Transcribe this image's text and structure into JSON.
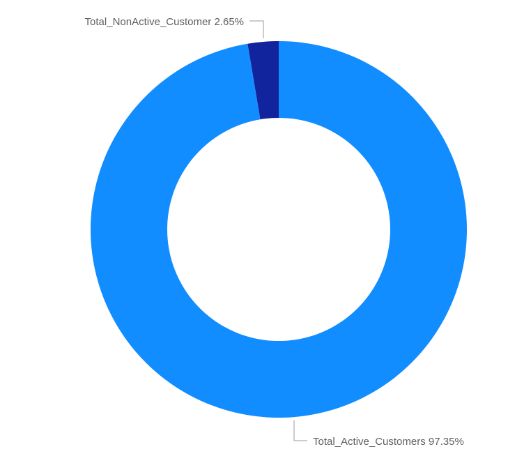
{
  "chart_data": {
    "type": "pie",
    "variant": "donut",
    "title": "",
    "slices": [
      {
        "name": "Total_NonActive_Customer",
        "value": 2.65,
        "label": "2.65%",
        "color": "#12239e"
      },
      {
        "name": "Total_Active_Customers",
        "value": 97.35,
        "label": "97.35%",
        "color": "#118dff"
      }
    ],
    "legend": "none",
    "data_labels": "outside with leader lines"
  }
}
